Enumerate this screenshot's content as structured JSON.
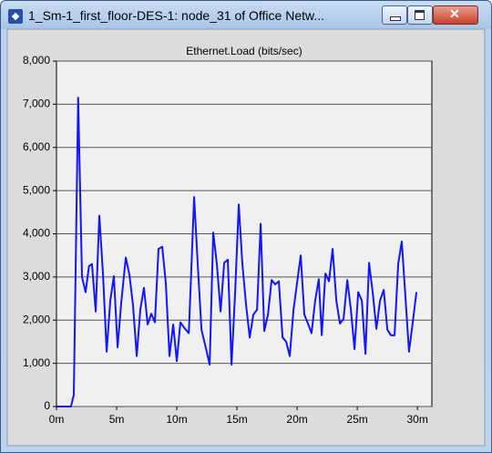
{
  "window": {
    "title": "1_Sm-1_first_floor-DES-1: node_31 of Office Netw..."
  },
  "chart_data": {
    "type": "line",
    "title": "Ethernet.Load (bits/sec)",
    "x": [
      0,
      1.2,
      1.44,
      1.8,
      2.12,
      2.42,
      2.7,
      2.95,
      3.26,
      3.56,
      3.86,
      4.17,
      4.47,
      4.77,
      5.08,
      5.38,
      5.76,
      6.06,
      6.36,
      6.67,
      6.97,
      7.27,
      7.58,
      7.88,
      8.18,
      8.48,
      8.79,
      9.09,
      9.39,
      9.7,
      10,
      10.3,
      10.68,
      11,
      11.44,
      11.74,
      12.05,
      12.42,
      12.73,
      13.03,
      13.33,
      13.64,
      13.94,
      14.24,
      14.55,
      14.85,
      15.15,
      15.45,
      15.76,
      16.06,
      16.36,
      16.67,
      16.97,
      17.27,
      17.58,
      17.88,
      18.18,
      18.48,
      18.79,
      19.09,
      19.39,
      19.7,
      20,
      20.3,
      20.6,
      20.9,
      21.2,
      21.5,
      21.8,
      22.05,
      22.35,
      22.65,
      22.95,
      23.26,
      23.56,
      23.86,
      24.17,
      24.47,
      24.77,
      25.08,
      25.38,
      25.68,
      25.98,
      26.28,
      26.59,
      26.89,
      27.2,
      27.5,
      27.8,
      28.1,
      28.4,
      28.7,
      29,
      29.3,
      29.6,
      29.92
    ],
    "series": [
      {
        "color": "#1414ff",
        "values": [
          0,
          0,
          270,
          7150,
          3000,
          2650,
          3250,
          3300,
          2200,
          4420,
          3100,
          1270,
          2450,
          3020,
          1370,
          2400,
          3450,
          3050,
          2350,
          1170,
          2250,
          2750,
          1900,
          2150,
          1950,
          3650,
          3700,
          2850,
          1170,
          1900,
          1050,
          1950,
          1800,
          1700,
          4850,
          3300,
          1780,
          1350,
          970,
          4030,
          3300,
          2200,
          3330,
          3400,
          970,
          2650,
          4680,
          3300,
          2350,
          1600,
          2130,
          2240,
          4230,
          1750,
          2130,
          2930,
          2830,
          2900,
          1600,
          1500,
          1170,
          2240,
          2870,
          3500,
          2130,
          1920,
          1700,
          2450,
          2950,
          1650,
          3080,
          2900,
          3650,
          2450,
          1920,
          2030,
          2930,
          2240,
          1330,
          2650,
          2450,
          1220,
          3330,
          2650,
          1800,
          2450,
          2700,
          1780,
          1650,
          1650,
          3300,
          3820,
          2550,
          1270,
          1920,
          2650
        ]
      }
    ],
    "xlim": [
      0,
      31.2
    ],
    "xticks": [
      {
        "value": 0,
        "label": "0m"
      },
      {
        "value": 5,
        "label": "5m"
      },
      {
        "value": 10,
        "label": "10m"
      },
      {
        "value": 15,
        "label": "15m"
      },
      {
        "value": 20,
        "label": "20m"
      },
      {
        "value": 25,
        "label": "25m"
      },
      {
        "value": 30,
        "label": "30m"
      }
    ],
    "ylim": [
      0,
      8000
    ],
    "yticks": [
      0,
      {
        "value": 1000,
        "label": "1,000"
      },
      {
        "value": 2000,
        "label": "2,000"
      },
      {
        "value": 3000,
        "label": "3,000"
      },
      {
        "value": 4000,
        "label": "4,000"
      },
      {
        "value": 5000,
        "label": "5,000"
      },
      {
        "value": 6000,
        "label": "6,000"
      },
      {
        "value": 7000,
        "label": "7,000"
      },
      {
        "value": 8000,
        "label": "8,000"
      }
    ],
    "grid": true
  }
}
